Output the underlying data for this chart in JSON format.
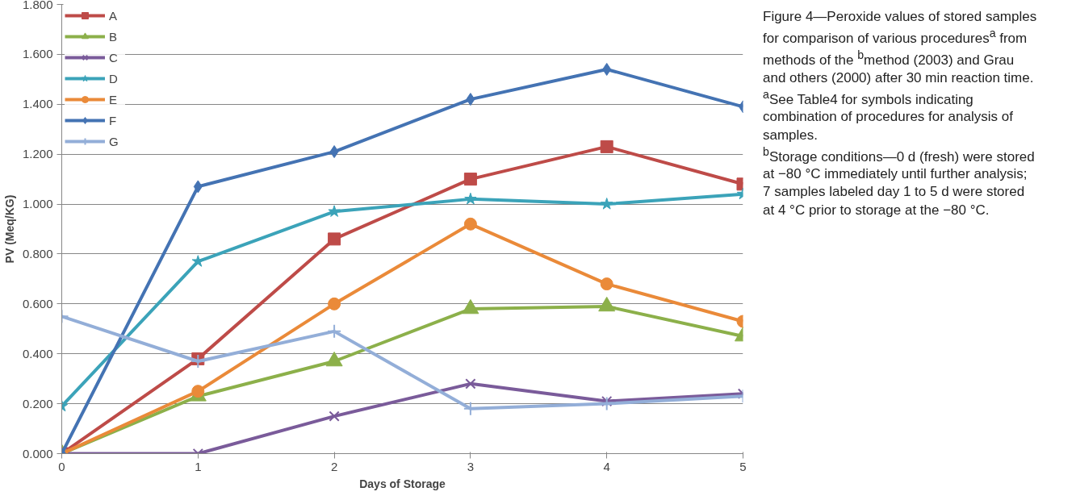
{
  "chart_data": {
    "type": "line",
    "title": "Figure 4—Peroxide values of stored samples for comparison of various procedures$^{a}$ from methods of the $^{b}$method (2003) and Grau and others (2000) after 30 min reaction time.",
    "annotations": [
      "$^{a}$See Table4 for symbols indicating combination of procedures for analysis of samples.",
      "$^{b}$Storage conditions—0 d (fresh) were stored at −80 °C immediately until further analysis; 7 samples labeled day 1 to 5 d were stored at 4 °C prior to storage at the −80 °C."
    ],
    "xlabel": "Days of Storage",
    "ylabel": "PV (Meq/KG)",
    "x": [
      0,
      1,
      2,
      3,
      4,
      5
    ],
    "series": [
      {
        "name": "A",
        "color": "#be4b48",
        "marker": "square",
        "values": [
          0,
          0.38,
          0.86,
          1.1,
          1.23,
          1.08
        ]
      },
      {
        "name": "B",
        "color": "#8cb04a",
        "marker": "triangle",
        "values": [
          0,
          0.23,
          0.37,
          0.58,
          0.59,
          0.47
        ]
      },
      {
        "name": "C",
        "color": "#7a5b9a",
        "marker": "x",
        "values": [
          0,
          0,
          0.15,
          0.28,
          0.21,
          0.24
        ]
      },
      {
        "name": "D",
        "color": "#3ba3b9",
        "marker": "star",
        "values": [
          0.19,
          0.77,
          0.97,
          1.02,
          1.0,
          1.04
        ]
      },
      {
        "name": "E",
        "color": "#ea8a39",
        "marker": "circle",
        "values": [
          0,
          0.25,
          0.6,
          0.92,
          0.68,
          0.53
        ]
      },
      {
        "name": "F",
        "color": "#4473b3",
        "marker": "diamond",
        "values": [
          0,
          1.07,
          1.21,
          1.42,
          1.54,
          1.39
        ]
      },
      {
        "name": "G",
        "color": "#93aed8",
        "marker": "cross",
        "values": [
          0.55,
          0.37,
          0.49,
          0.18,
          0.2,
          0.23
        ]
      }
    ],
    "xlim": [
      0,
      5
    ],
    "xticks": [
      0,
      1,
      2,
      3,
      4,
      5
    ],
    "ylim": [
      0,
      1.8
    ],
    "yticks": [
      {
        "value": 0,
        "label": "0.000"
      },
      {
        "value": 0.2,
        "label": "0.200"
      },
      {
        "value": 0.4,
        "label": "0.400"
      },
      {
        "value": 0.6,
        "label": "0.600"
      },
      {
        "value": 0.8,
        "label": "0.800"
      },
      {
        "value": 1.0,
        "label": "1.000"
      },
      {
        "value": 1.2,
        "label": "1.200"
      },
      {
        "value": 1.4,
        "label": "1.400"
      },
      {
        "value": 1.6,
        "label": "1.600"
      },
      {
        "value": 1.8,
        "label": "1.800"
      }
    ],
    "grid": "y",
    "legend": "top left",
    "line_style": "solid"
  }
}
